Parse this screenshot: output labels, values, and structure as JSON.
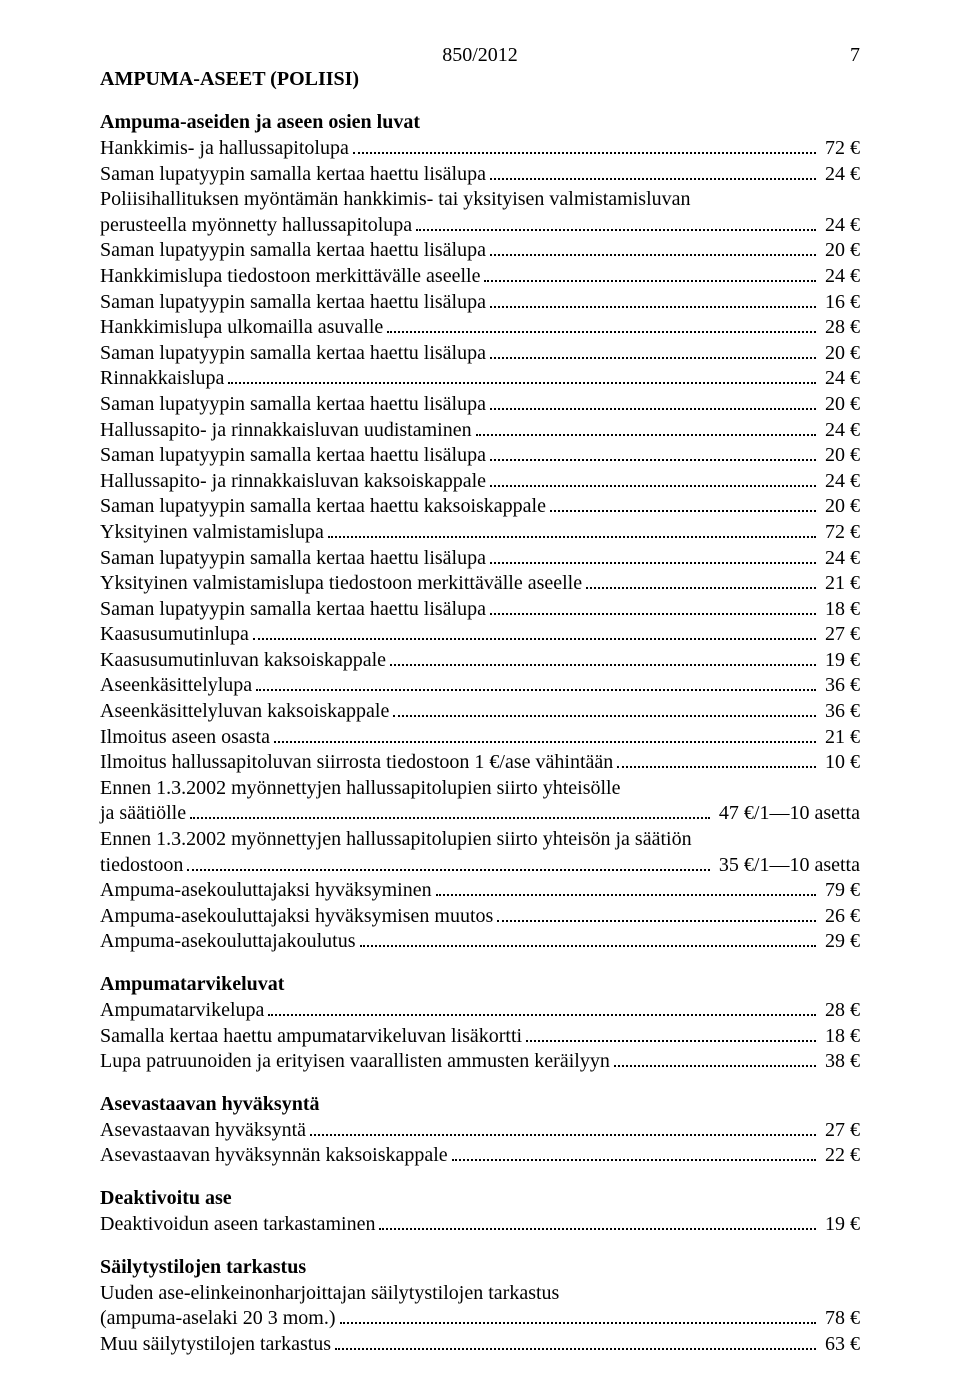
{
  "header": {
    "docnum": "850/2012",
    "pagenum": "7"
  },
  "title": "AMPUMA-ASEET (POLIISI)",
  "euro": "€",
  "sections": [
    {
      "heading": "Ampuma-aseiden ja aseen osien luvat",
      "items": [
        {
          "label": "Hankkimis- ja hallussapitolupa",
          "price": "72"
        },
        {
          "label": "Saman lupatyypin samalla kertaa haettu lisälupa",
          "price": "24"
        },
        {
          "label": "Poliisihallituksen myöntämän hankkimis- tai yksityisen valmistamisluvan",
          "cont": "perusteella myönnetty hallussapitolupa",
          "price": "24"
        },
        {
          "label": "Saman lupatyypin samalla kertaa haettu lisälupa",
          "price": "20"
        },
        {
          "label": "Hankkimislupa tiedostoon merkittävälle aseelle",
          "price": "24"
        },
        {
          "label": "Saman lupatyypin samalla kertaa haettu lisälupa",
          "price": "16"
        },
        {
          "label": "Hankkimislupa ulkomailla asuvalle",
          "price": "28"
        },
        {
          "label": "Saman lupatyypin samalla kertaa haettu lisälupa",
          "price": "20"
        },
        {
          "label": "Rinnakkaislupa",
          "price": "24"
        },
        {
          "label": "Saman lupatyypin samalla kertaa haettu lisälupa",
          "price": "20"
        },
        {
          "label": "Hallussapito- ja rinnakkaisluvan uudistaminen",
          "price": "24"
        },
        {
          "label": "Saman lupatyypin samalla kertaa haettu lisälupa",
          "price": "20"
        },
        {
          "label": "Hallussapito- ja rinnakkaisluvan kaksoiskappale",
          "price": "24"
        },
        {
          "label": "Saman lupatyypin samalla kertaa haettu kaksoiskappale",
          "price": "20"
        },
        {
          "label": "Yksityinen valmistamislupa",
          "price": "72"
        },
        {
          "label": "Saman lupatyypin samalla kertaa haettu lisälupa",
          "price": "24"
        },
        {
          "label": "Yksityinen valmistamislupa tiedostoon merkittävälle aseelle",
          "price": "21"
        },
        {
          "label": "Saman lupatyypin samalla kertaa haettu lisälupa",
          "price": "18"
        },
        {
          "label": "Kaasusumutinlupa",
          "price": "27"
        },
        {
          "label": "Kaasusumutinluvan kaksoiskappale",
          "price": "19"
        },
        {
          "label": "Aseenkäsittelylupa",
          "price": "36"
        },
        {
          "label": "Aseenkäsittelyluvan kaksoiskappale",
          "price": "36"
        },
        {
          "label": "Ilmoitus aseen osasta",
          "price": "21"
        },
        {
          "label": "Ilmoitus hallussapitoluvan siirrosta tiedostoon 1 €/ase vähintään",
          "price": "10"
        },
        {
          "label": "Ennen 1.3.2002 myönnettyjen hallussapitolupien siirto yhteisölle",
          "cont": "ja säätiölle",
          "price_text": "47 €/1—10 asetta"
        },
        {
          "label": "Ennen 1.3.2002 myönnettyjen hallussapitolupien siirto yhteisön ja säätiön",
          "cont": "tiedostoon",
          "price_text": "35 €/1—10 asetta"
        },
        {
          "label": "Ampuma-asekouluttajaksi hyväksyminen",
          "price": "79"
        },
        {
          "label": "Ampuma-asekouluttajaksi hyväksymisen muutos",
          "price": "26"
        },
        {
          "label": "Ampuma-asekouluttajakoulutus",
          "price": "29"
        }
      ]
    },
    {
      "heading": "Ampumatarvikeluvat",
      "items": [
        {
          "label": "Ampumatarvikelupa",
          "price": "28"
        },
        {
          "label": "Samalla kertaa haettu ampumatarvikeluvan lisäkortti",
          "price": "18"
        },
        {
          "label": "Lupa patruunoiden ja erityisen vaarallisten ammusten keräilyyn",
          "price": "38"
        }
      ]
    },
    {
      "heading": "Asevastaavan hyväksyntä",
      "items": [
        {
          "label": "Asevastaavan hyväksyntä",
          "price": "27"
        },
        {
          "label": "Asevastaavan hyväksynnän kaksoiskappale",
          "price": "22"
        }
      ]
    },
    {
      "heading": "Deaktivoitu ase",
      "items": [
        {
          "label": "Deaktivoidun aseen tarkastaminen",
          "price": "19"
        }
      ]
    },
    {
      "heading": "Säilytystilojen tarkastus",
      "items": [
        {
          "label": "Uuden ase-elinkeinonharjoittajan säilytystilojen tarkastus",
          "cont": "(ampuma-aselaki 20 3 mom.)",
          "price": "78"
        },
        {
          "label": "Muu säilytystilojen tarkastus",
          "price": "63"
        }
      ]
    }
  ]
}
